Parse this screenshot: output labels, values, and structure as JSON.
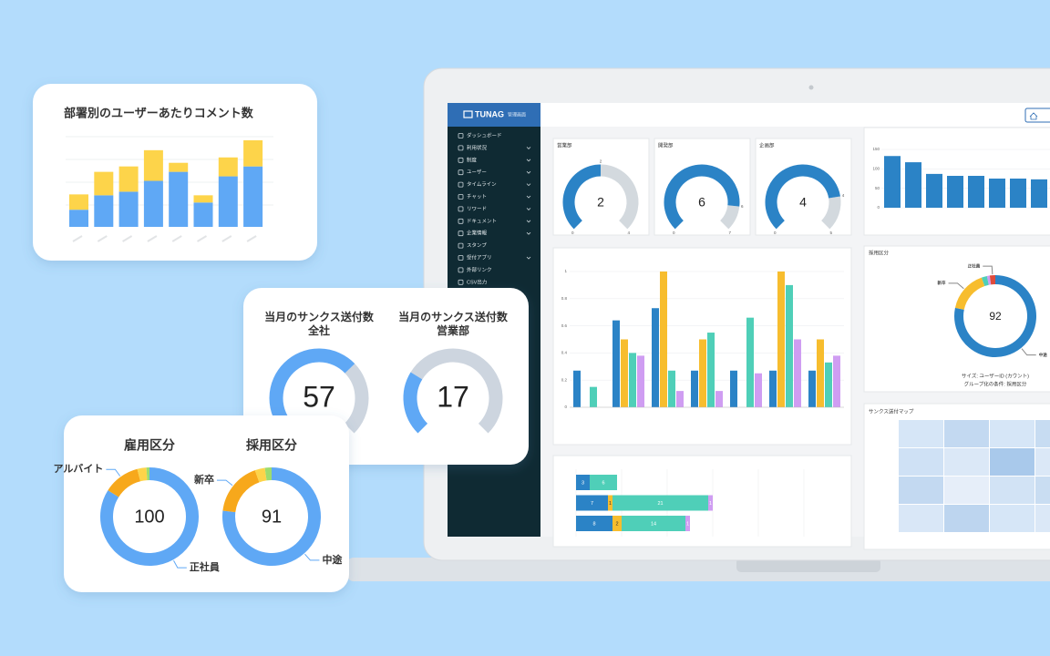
{
  "screen": {
    "brand": "TUNAG",
    "brand_sub": "管理画面",
    "menu": [
      "ダッシュボード",
      "利用状況",
      "制度",
      "ユーザー",
      "タイムライン",
      "チャット",
      "リワード",
      "ドキュメント",
      "企業情報",
      "スタンプ",
      "受付アプリ",
      "外部リンク",
      "CSV出力"
    ],
    "gauges": [
      {
        "title": "営業部",
        "value": 2,
        "min": 0,
        "max": 4
      },
      {
        "title": "開発部",
        "value": 6,
        "min": 0,
        "max": 7
      },
      {
        "title": "企画部",
        "value": 4,
        "min": 0,
        "max": 5
      }
    ],
    "bar_chart": {
      "values": [
        133,
        117,
        87,
        82,
        82,
        75,
        75,
        73
      ],
      "ylim": [
        0,
        150
      ],
      "yticks": [
        0,
        50,
        100,
        150
      ],
      "color": "#2b83c6"
    },
    "grouped_chart": {
      "ylim": [
        0,
        1
      ],
      "yticks": [
        0,
        0.2,
        0.4,
        0.6,
        0.8,
        1
      ],
      "series": [
        {
          "color": "#2b83c6",
          "values": [
            0.27,
            0.64,
            0.73,
            0.27,
            0.27,
            0.27,
            0.27
          ]
        },
        {
          "color": "#f7bd2e",
          "values": [
            null,
            0.5,
            1,
            0.5,
            null,
            1,
            0.5
          ]
        },
        {
          "color": "#4fcfb8",
          "values": [
            0.15,
            0.4,
            0.27,
            0.55,
            0.66,
            0.9,
            0.33
          ]
        },
        {
          "color": "#cf9df2",
          "values": [
            null,
            0.38,
            0.12,
            0.12,
            0.25,
            0.5,
            0.38
          ]
        }
      ]
    },
    "hbar_chart": {
      "series": [
        {
          "color": "#2b83c6",
          "values": [
            3,
            7,
            8
          ]
        },
        {
          "color": "#f7bd2e",
          "values": [
            null,
            1,
            2
          ]
        },
        {
          "color": "#4fcfb8",
          "values": [
            6,
            21,
            14
          ]
        },
        {
          "color": "#cf9df2",
          "values": [
            null,
            1,
            1
          ]
        }
      ]
    },
    "donut": {
      "title": "採用区分",
      "total": 92,
      "segments": [
        {
          "name": "中途",
          "value": 72,
          "color": "#2b83c6"
        },
        {
          "name": "新卒",
          "value": 15,
          "color": "#f7bd2e"
        },
        {
          "name": null,
          "value": 2,
          "color": "#4fcfb8"
        },
        {
          "name": null,
          "value": 1,
          "color": "#cf9df2"
        },
        {
          "name": "正社員",
          "value": 2,
          "color": "#e04b3c"
        }
      ],
      "notes": [
        "サイズ: ユーザーID (カウント)",
        "グループ化の条件: 採用区分"
      ]
    },
    "heatmap_title": "サンクス送付マップ"
  },
  "comment_card": {
    "title": "部署別のユーザーあたりコメント数",
    "ylim": [
      0,
      100
    ],
    "series": [
      {
        "color": "#5fa8f5",
        "values": [
          19,
          35,
          39,
          51,
          61,
          27,
          56,
          67
        ]
      },
      {
        "color": "#fdd44a",
        "values": [
          17,
          26,
          28,
          34,
          10,
          8,
          21,
          29
        ]
      }
    ]
  },
  "gauge_card": {
    "gauges": [
      {
        "title_lines": [
          "当月のサンクス送付数",
          "全社"
        ],
        "value": 57,
        "min": 0,
        "max": 85
      },
      {
        "title_lines": [
          "当月のサンクス送付数",
          "営業部"
        ],
        "value": 17,
        "min": 0,
        "max": 60
      }
    ]
  },
  "donut_card": {
    "donuts": [
      {
        "title": "雇用区分",
        "total": 100,
        "segments": [
          {
            "name": "正社員",
            "value": 84,
            "color": "#5fa8f5"
          },
          {
            "name": "アルバイト",
            "value": 12,
            "color": "#f7a81b"
          },
          {
            "name": null,
            "value": 3,
            "color": "#fdd44a"
          },
          {
            "name": null,
            "value": 1,
            "color": "#9ddc6e"
          }
        ]
      },
      {
        "title": "採用区分",
        "total": 91,
        "segments": [
          {
            "name": "中途",
            "value": 70,
            "color": "#5fa8f5"
          },
          {
            "name": "新卒",
            "value": 16,
            "color": "#f7a81b"
          },
          {
            "name": null,
            "value": 3,
            "color": "#fdd44a"
          },
          {
            "name": null,
            "value": 2,
            "color": "#9ddc6e"
          }
        ]
      }
    ]
  }
}
